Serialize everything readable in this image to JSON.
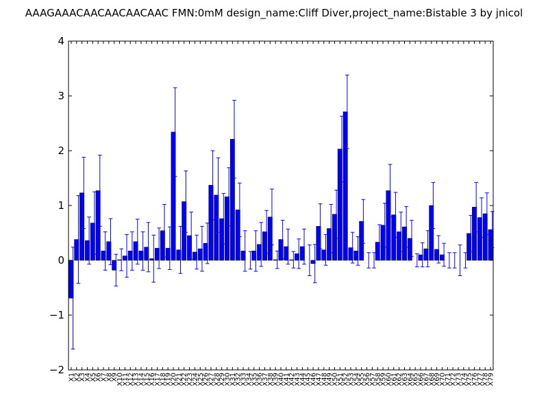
{
  "chart_data": {
    "type": "bar",
    "title": "AAAGAAACAACAACAACAAC  FMN:0mM  design_name:Cliff Diver,project_name:Bistable 3 by jnicol",
    "xlabel": "",
    "ylabel": "",
    "ylim": [
      -2,
      4
    ],
    "yticks": [
      -2,
      -1,
      0,
      1,
      2,
      3,
      4
    ],
    "ytick_labels": [
      "−2",
      "−1",
      "0",
      "1",
      "2",
      "3",
      "4"
    ],
    "bar_color": "#0000ff",
    "error_color": "#0000ff",
    "categories": [
      "X1",
      "X2",
      "X3",
      "X4",
      "X5",
      "X6",
      "X7",
      "X8",
      "X9",
      "X10",
      "X11",
      "X12",
      "X13",
      "X14",
      "X15",
      "X16",
      "X17",
      "X18",
      "X19",
      "X20",
      "X21",
      "X22",
      "X23",
      "X24",
      "X25",
      "X26",
      "X27",
      "X28",
      "X29",
      "X30",
      "X31",
      "X32",
      "X33",
      "X34",
      "X35",
      "X36",
      "X37",
      "X38",
      "X39",
      "X40",
      "X41",
      "X42",
      "X43",
      "X44",
      "X45",
      "X46",
      "X47",
      "X48",
      "X49",
      "X50",
      "X51",
      "X52",
      "X53",
      "X54",
      "X55",
      "X56",
      "X57",
      "X58",
      "X59",
      "X60",
      "X61",
      "X62",
      "X63",
      "X64",
      "X65",
      "X66",
      "X67",
      "X68",
      "X69",
      "X70",
      "X71",
      "X72",
      "X73",
      "X74",
      "X75",
      "X76",
      "X77",
      "X78",
      "X79"
    ],
    "values": [
      -0.69,
      0.38,
      1.23,
      0.36,
      0.68,
      1.27,
      0.17,
      0.34,
      -0.18,
      0.01,
      0.08,
      0.17,
      0.34,
      0.17,
      0.24,
      0.03,
      0.22,
      0.54,
      0.22,
      2.34,
      0.19,
      1.07,
      0.45,
      0.15,
      0.21,
      0.31,
      1.37,
      1.19,
      0.76,
      1.16,
      2.21,
      0.92,
      0.17,
      0.0,
      0.17,
      0.29,
      0.52,
      0.79,
      0.01,
      0.38,
      0.25,
      0.01,
      0.12,
      0.25,
      0.0,
      -0.06,
      0.62,
      0.19,
      0.58,
      0.84,
      2.03,
      2.71,
      0.23,
      0.17,
      0.71,
      0.0,
      0.0,
      0.33,
      0.64,
      1.27,
      0.83,
      0.52,
      0.61,
      0.4,
      0.0,
      0.1,
      0.21,
      1.0,
      0.2,
      0.1,
      0.0,
      0.0,
      0.0,
      0.0,
      0.49,
      0.97,
      0.78,
      0.85,
      0.56
    ],
    "errors": [
      0.93,
      0.8,
      0.65,
      0.43,
      0.57,
      0.65,
      0.35,
      0.42,
      0.29,
      0.2,
      0.39,
      0.35,
      0.41,
      0.35,
      0.45,
      0.43,
      0.37,
      0.48,
      0.39,
      0.81,
      0.43,
      0.56,
      0.43,
      0.31,
      0.41,
      0.37,
      0.63,
      0.68,
      0.46,
      0.53,
      0.71,
      0.49,
      0.37,
      0.16,
      0.37,
      0.4,
      0.39,
      0.51,
      0.16,
      0.35,
      0.32,
      0.15,
      0.27,
      0.32,
      0.28,
      0.35,
      0.41,
      0.28,
      0.44,
      0.44,
      0.6,
      0.67,
      0.28,
      0.26,
      0.4,
      0.14,
      0.14,
      0.32,
      0.4,
      0.48,
      0.41,
      0.36,
      0.37,
      0.33,
      0.12,
      0.22,
      0.33,
      0.42,
      0.25,
      0.21,
      0.14,
      0.14,
      0.28,
      0.14,
      0.33,
      0.45,
      0.36,
      0.38,
      0.33
    ]
  }
}
